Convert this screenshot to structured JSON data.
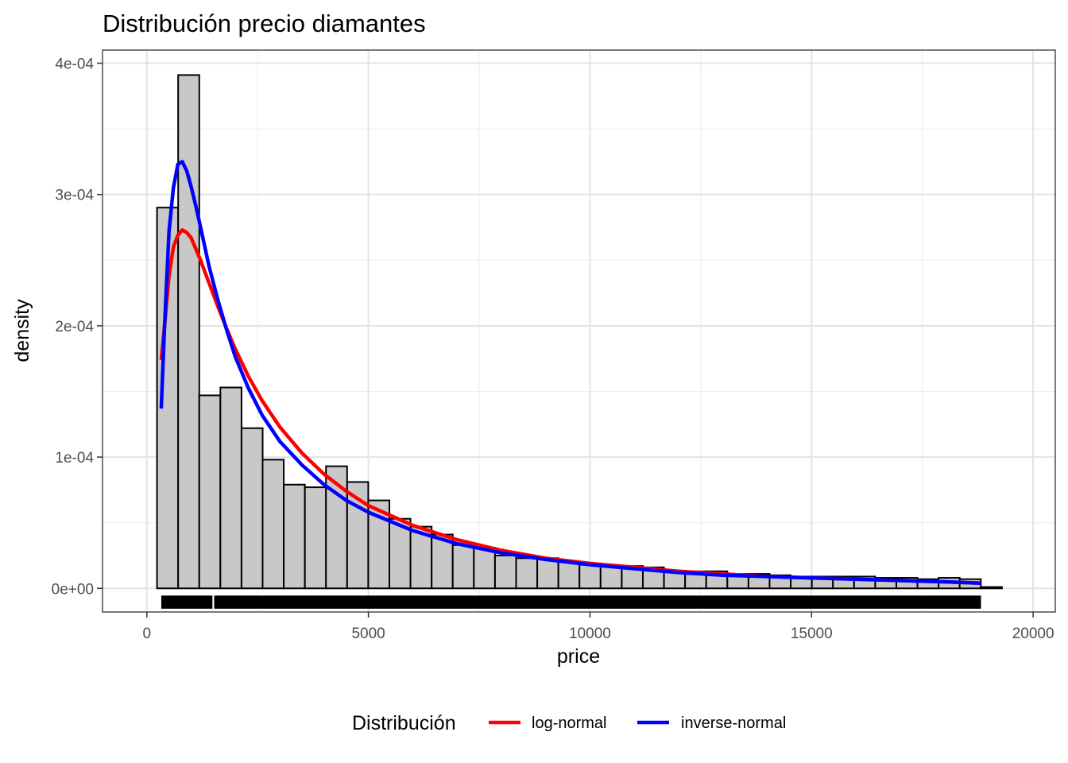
{
  "chart_data": {
    "type": "histogram",
    "title": "Distribución precio diamantes",
    "xlabel": "price",
    "ylabel": "density",
    "xlim": [
      -1000,
      20500
    ],
    "ylim": [
      -1.8e-05,
      0.00041
    ],
    "x_ticks": [
      0,
      5000,
      10000,
      15000,
      20000
    ],
    "x_tick_labels": [
      "0",
      "5000",
      "10000",
      "15000",
      "20000"
    ],
    "y_ticks": [
      0,
      0.0001,
      0.0002,
      0.0003,
      0.0004
    ],
    "y_tick_labels": [
      "0e+00",
      "1e-04",
      "2e-04",
      "3e-04",
      "4e-04"
    ],
    "grid": true,
    "bin_width": 476.6,
    "bins": [
      {
        "x0": 230,
        "density": 0.00029
      },
      {
        "x0": 707,
        "density": 0.000391
      },
      {
        "x0": 1183,
        "density": 0.000147
      },
      {
        "x0": 1660,
        "density": 0.000153
      },
      {
        "x0": 2137,
        "density": 0.000122
      },
      {
        "x0": 2613,
        "density": 9.8e-05
      },
      {
        "x0": 3090,
        "density": 7.9e-05
      },
      {
        "x0": 3567,
        "density": 7.7e-05
      },
      {
        "x0": 4043,
        "density": 9.3e-05
      },
      {
        "x0": 4520,
        "density": 8.1e-05
      },
      {
        "x0": 4997,
        "density": 6.7e-05
      },
      {
        "x0": 5473,
        "density": 5.3e-05
      },
      {
        "x0": 5950,
        "density": 4.7e-05
      },
      {
        "x0": 6427,
        "density": 4.1e-05
      },
      {
        "x0": 6903,
        "density": 3.3e-05
      },
      {
        "x0": 7380,
        "density": 3.1e-05
      },
      {
        "x0": 7857,
        "density": 2.5e-05
      },
      {
        "x0": 8333,
        "density": 2.3e-05
      },
      {
        "x0": 8810,
        "density": 2.3e-05
      },
      {
        "x0": 9287,
        "density": 2e-05
      },
      {
        "x0": 9763,
        "density": 1.8e-05
      },
      {
        "x0": 10240,
        "density": 1.7e-05
      },
      {
        "x0": 10717,
        "density": 1.7e-05
      },
      {
        "x0": 11193,
        "density": 1.6e-05
      },
      {
        "x0": 11670,
        "density": 1.3e-05
      },
      {
        "x0": 12147,
        "density": 1.3e-05
      },
      {
        "x0": 12623,
        "density": 1.3e-05
      },
      {
        "x0": 13100,
        "density": 1.1e-05
      },
      {
        "x0": 13577,
        "density": 1.1e-05
      },
      {
        "x0": 14053,
        "density": 1e-05
      },
      {
        "x0": 14530,
        "density": 9e-06
      },
      {
        "x0": 15007,
        "density": 9e-06
      },
      {
        "x0": 15483,
        "density": 9e-06
      },
      {
        "x0": 15960,
        "density": 9e-06
      },
      {
        "x0": 16437,
        "density": 8e-06
      },
      {
        "x0": 16913,
        "density": 8e-06
      },
      {
        "x0": 17390,
        "density": 7e-06
      },
      {
        "x0": 17867,
        "density": 8e-06
      },
      {
        "x0": 18343,
        "density": 7e-06
      },
      {
        "x0": 18820,
        "density": 1e-06
      }
    ],
    "bar_fill": "#c8c8c8",
    "bar_stroke": "#000000",
    "rug": {
      "segments": [
        [
          326,
          1480
        ],
        [
          1520,
          18823
        ]
      ],
      "y_data_range": [
        -1.55e-05,
        -5.5e-06
      ],
      "color": "#000000"
    },
    "series": [
      {
        "name": "log-normal",
        "color": "#ff0000",
        "x": [
          326,
          400,
          500,
          600,
          700,
          800,
          900,
          1000,
          1100,
          1200,
          1400,
          1600,
          1800,
          2000,
          2300,
          2600,
          3000,
          3500,
          4000,
          4500,
          5000,
          6000,
          7000,
          8000,
          9000,
          10000,
          11000,
          12000,
          13000,
          14000,
          15000,
          16000,
          17000,
          18000,
          18823
        ],
        "y": [
          0.000174,
          0.0002,
          0.000238,
          0.00026,
          0.000269,
          0.000273,
          0.000271,
          0.000267,
          0.000259,
          0.000251,
          0.000233,
          0.000215,
          0.000198,
          0.000182,
          0.000161,
          0.000143,
          0.000123,
          0.000103,
          8.7e-05,
          7.4e-05,
          6.3e-05,
          4.8e-05,
          3.7e-05,
          2.9e-05,
          2.3e-05,
          1.9e-05,
          1.6e-05,
          1.3e-05,
          1.1e-05,
          9e-06,
          8e-06,
          7e-06,
          6e-06,
          5e-06,
          4e-06
        ]
      },
      {
        "name": "inverse-normal",
        "color": "#0000ff",
        "x": [
          326,
          400,
          500,
          600,
          700,
          800,
          900,
          1000,
          1100,
          1200,
          1400,
          1600,
          1800,
          2000,
          2300,
          2600,
          3000,
          3500,
          4000,
          4500,
          5000,
          6000,
          7000,
          8000,
          9000,
          10000,
          11000,
          12000,
          13000,
          14000,
          15000,
          16000,
          17000,
          18000,
          18823
        ],
        "y": [
          0.000137,
          0.0002,
          0.000272,
          0.000305,
          0.000323,
          0.000325,
          0.000318,
          0.000306,
          0.000292,
          0.000277,
          0.000246,
          0.00022,
          0.000197,
          0.000176,
          0.000152,
          0.000132,
          0.000112,
          9.4e-05,
          7.9e-05,
          6.7e-05,
          5.8e-05,
          4.4e-05,
          3.4e-05,
          2.7e-05,
          2.2e-05,
          1.8e-05,
          1.5e-05,
          1.2e-05,
          1e-05,
          9e-06,
          8e-06,
          7e-06,
          6e-06,
          5e-06,
          4e-06
        ]
      }
    ],
    "legend": {
      "title": "Distribución",
      "position": "bottom",
      "items": [
        {
          "label": "log-normal",
          "color": "#ff0000"
        },
        {
          "label": "inverse-normal",
          "color": "#0000ff"
        }
      ]
    }
  }
}
